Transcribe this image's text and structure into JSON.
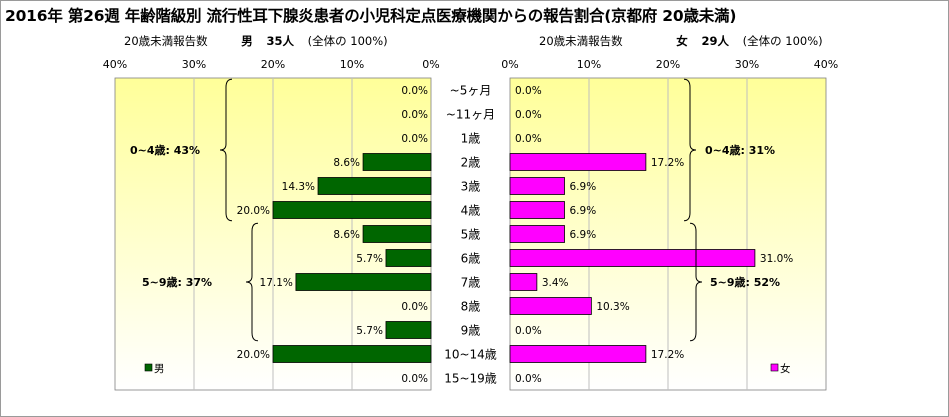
{
  "title": "2016年 第26週 年齢階級別 流行性耳下腺炎患者の小児科定点医療機関からの報告割合(京都府 20歳未満)",
  "left_header": {
    "caption": "20歳未満報告数",
    "sex": "男",
    "count": "35人",
    "total": "(全体の 100%)"
  },
  "right_header": {
    "caption": "20歳未満報告数",
    "sex": "女",
    "count": "29人",
    "total": "(全体の 100%)"
  },
  "colors": {
    "male": "#006600",
    "female": "#ff00ff",
    "panel_top": "#ffff99",
    "panel_bottom": "#ffffff",
    "grid": "#bfbfbf"
  },
  "chart_data": {
    "type": "bar",
    "orientation": "horizontal-butterfly",
    "categories": [
      "~5ヶ月",
      "~11ヶ月",
      "1歳",
      "2歳",
      "3歳",
      "4歳",
      "5歳",
      "6歳",
      "7歳",
      "8歳",
      "9歳",
      "10~14歳",
      "15~19歳"
    ],
    "series": [
      {
        "name": "男",
        "side": "left",
        "values": [
          0.0,
          0.0,
          0.0,
          8.6,
          14.3,
          20.0,
          8.6,
          5.7,
          17.1,
          0.0,
          5.7,
          20.0,
          0.0
        ],
        "labels": [
          "0.0%",
          "0.0%",
          "0.0%",
          "8.6%",
          "14.3%",
          "20.0%",
          "8.6%",
          "5.7%",
          "17.1%",
          "0.0%",
          "5.7%",
          "20.0%",
          "0.0%"
        ]
      },
      {
        "name": "女",
        "side": "right",
        "values": [
          0.0,
          0.0,
          0.0,
          17.2,
          6.9,
          6.9,
          6.9,
          31.0,
          3.4,
          10.3,
          0.0,
          17.2,
          0.0
        ],
        "labels": [
          "0.0%",
          "0.0%",
          "0.0%",
          "17.2%",
          "6.9%",
          "6.9%",
          "6.9%",
          "31.0%",
          "3.4%",
          "10.3%",
          "0.0%",
          "17.2%",
          "0.0%"
        ]
      }
    ],
    "xlim": [
      0,
      40
    ],
    "left_ticks": [
      "40%",
      "30%",
      "20%",
      "10%",
      "0%"
    ],
    "right_ticks": [
      "0%",
      "10%",
      "20%",
      "30%",
      "40%"
    ],
    "grid": true,
    "legend_position": "bottom",
    "groups": {
      "left": [
        {
          "text": "0~4歳: 43%",
          "from": 0,
          "to": 5
        },
        {
          "text": "5~9歳: 37%",
          "from": 6,
          "to": 10
        }
      ],
      "right": [
        {
          "text": "0~4歳: 31%",
          "from": 0,
          "to": 5
        },
        {
          "text": "5~9歳: 52%",
          "from": 6,
          "to": 10
        }
      ]
    }
  }
}
